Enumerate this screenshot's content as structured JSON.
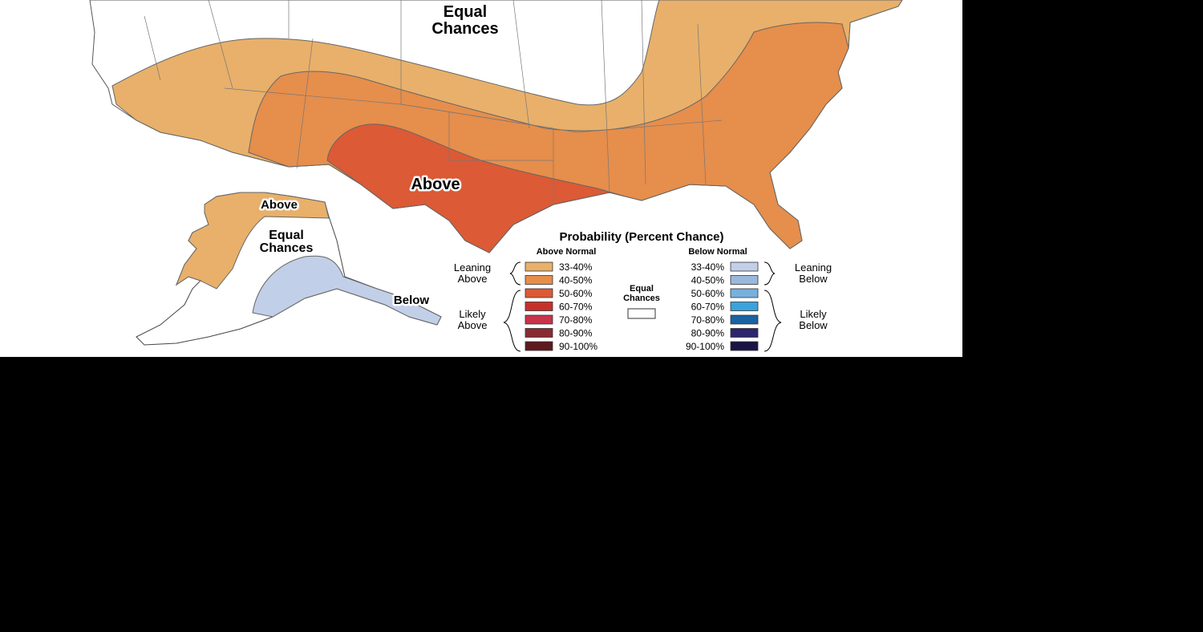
{
  "map": {
    "labels": {
      "conus_equal": [
        "Equal",
        "Chances"
      ],
      "conus_above": "Above",
      "alaska_above": "Above",
      "alaska_equal": [
        "Equal",
        "Chances"
      ],
      "alaska_below": "Below"
    }
  },
  "legend": {
    "title": "Probability (Percent Chance)",
    "above_header": "Above Normal",
    "below_header": "Below Normal",
    "equal_label": [
      "Equal",
      "Chances"
    ],
    "equal_color": "#ffffff",
    "leaning_above": [
      "Leaning",
      "Above"
    ],
    "likely_above": [
      "Likely",
      "Above"
    ],
    "leaning_below": [
      "Leaning",
      "Below"
    ],
    "likely_below": [
      "Likely",
      "Below"
    ],
    "above": [
      {
        "range": "33-40%",
        "color": "#e8b06a"
      },
      {
        "range": "40-50%",
        "color": "#e68e4c"
      },
      {
        "range": "50-60%",
        "color": "#dc5a35"
      },
      {
        "range": "60-70%",
        "color": "#c8302a"
      },
      {
        "range": "70-80%",
        "color": "#c8344a"
      },
      {
        "range": "80-90%",
        "color": "#8a2b32"
      },
      {
        "range": "90-100%",
        "color": "#5e1a1e"
      }
    ],
    "below": [
      {
        "range": "33-40%",
        "color": "#c2cfe8"
      },
      {
        "range": "40-50%",
        "color": "#9ab8dc"
      },
      {
        "range": "50-60%",
        "color": "#78b0de"
      },
      {
        "range": "60-70%",
        "color": "#3aa2dc"
      },
      {
        "range": "70-80%",
        "color": "#1a62a2"
      },
      {
        "range": "80-90%",
        "color": "#2e2470"
      },
      {
        "range": "90-100%",
        "color": "#1a1444"
      }
    ]
  }
}
